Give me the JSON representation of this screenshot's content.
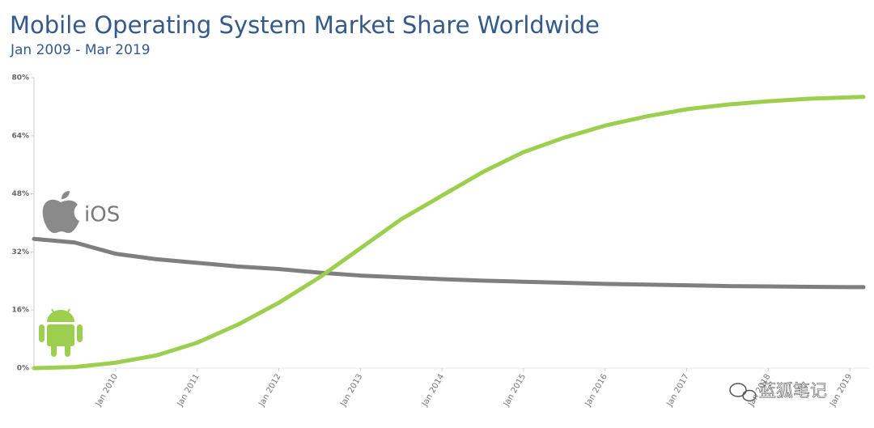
{
  "chart_data": {
    "type": "line",
    "title": "Mobile Operating System Market Share Worldwide",
    "subtitle": "Jan 2009 - Mar 2019",
    "annotations": [
      "iOS",
      "蓝狐笔记"
    ],
    "x": [
      "2009-01",
      "2009-07",
      "2010-01",
      "2010-07",
      "2011-01",
      "2011-07",
      "2012-01",
      "2012-07",
      "2013-01",
      "2013-07",
      "2014-01",
      "2014-07",
      "2015-01",
      "2015-07",
      "2016-01",
      "2016-07",
      "2017-01",
      "2017-07",
      "2018-01",
      "2018-07",
      "2019-01",
      "2019-03"
    ],
    "series": [
      {
        "name": "iOS",
        "color": "#7f7f7f",
        "values": [
          35.6,
          34.6,
          31.5,
          30,
          29,
          28,
          27.3,
          26.3,
          25.5,
          25,
          24.5,
          24.1,
          23.8,
          23.5,
          23.2,
          23,
          22.8,
          22.6,
          22.5,
          22.4,
          22.3,
          22.3
        ]
      },
      {
        "name": "Android",
        "color": "#9ccf4f",
        "values": [
          0,
          0.3,
          1.5,
          3.5,
          7,
          12,
          18,
          25,
          33,
          41,
          47.5,
          54,
          59.5,
          63.5,
          66.8,
          69.3,
          71.3,
          72.6,
          73.5,
          74.2,
          74.6,
          74.7
        ]
      }
    ],
    "xlim": [
      "2009-01",
      "2019-03"
    ],
    "xticks": [
      {
        "value": "2010-01",
        "label": "Jan 2010"
      },
      {
        "value": "2011-01",
        "label": "Jan 2011"
      },
      {
        "value": "2012-01",
        "label": "Jan 2012"
      },
      {
        "value": "2013-01",
        "label": "Jan 2013"
      },
      {
        "value": "2014-01",
        "label": "Jan 2014"
      },
      {
        "value": "2015-01",
        "label": "Jan 2015"
      },
      {
        "value": "2016-01",
        "label": "Jan 2016"
      },
      {
        "value": "2017-01",
        "label": "Jan 2017"
      },
      {
        "value": "2018-01",
        "label": "Jan 2018"
      },
      {
        "value": "2019-01",
        "label": "Jan 2019"
      }
    ],
    "ylim": [
      0,
      80
    ],
    "yticks": [
      {
        "value": 0,
        "label": "0%"
      },
      {
        "value": 16,
        "label": "16%"
      },
      {
        "value": 32,
        "label": "32%"
      },
      {
        "value": 48,
        "label": "48%"
      },
      {
        "value": 64,
        "label": "64%"
      },
      {
        "value": 80,
        "label": "80%"
      }
    ]
  }
}
